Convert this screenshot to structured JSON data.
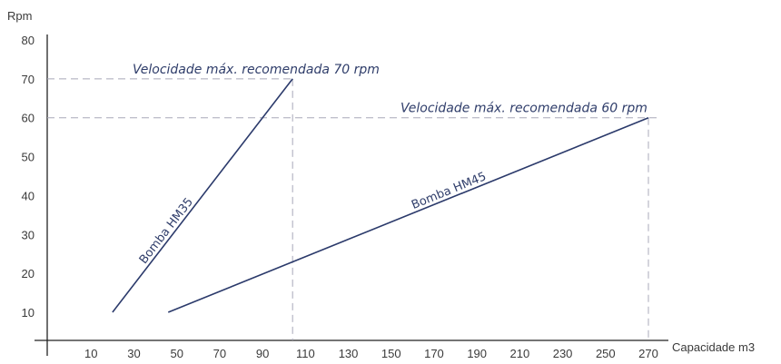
{
  "chart_data": {
    "type": "line",
    "ylabel": "Rpm",
    "xlabel": "Capacidade m3",
    "x_ticks": [
      10,
      30,
      50,
      70,
      90,
      110,
      130,
      150,
      170,
      190,
      210,
      230,
      250,
      270
    ],
    "y_ticks": [
      10,
      20,
      30,
      40,
      50,
      60,
      70,
      80
    ],
    "xlim": [
      0,
      275
    ],
    "ylim": [
      0,
      85
    ],
    "grid": false,
    "series": [
      {
        "name": "Bomba HM35",
        "x": [
          20,
          104
        ],
        "y": [
          10,
          70
        ],
        "color": "#2b3a6b"
      },
      {
        "name": "Bomba HM45",
        "x": [
          46,
          270
        ],
        "y": [
          10,
          60
        ],
        "color": "#2b3a6b"
      }
    ],
    "reference_lines": [
      {
        "label": "Velocidade máx. recomendada 70 rpm",
        "y": 70,
        "x": 104
      },
      {
        "label": "Velocidade máx. recomendada 60 rpm",
        "y": 60,
        "x": 270
      }
    ],
    "colors": {
      "line": "#2b3a6b",
      "dash": "#a8a8b8",
      "axis": "#222222",
      "text": "#3a3a3a"
    }
  }
}
